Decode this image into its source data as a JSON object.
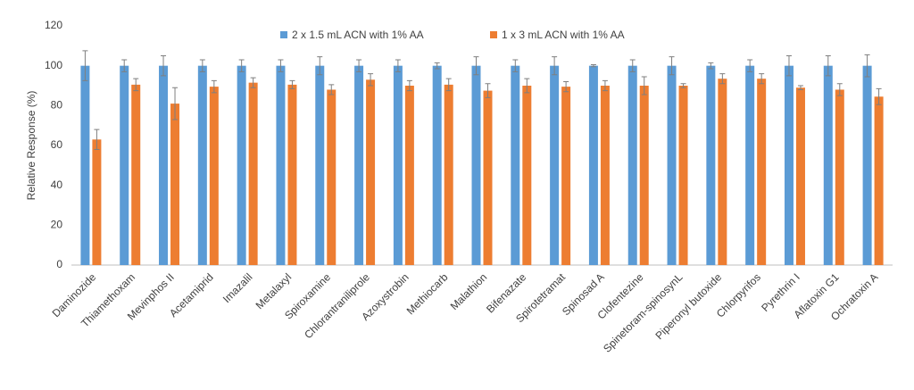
{
  "chart_data": {
    "type": "bar",
    "y_label": "Relative Response (%)",
    "categories": [
      "Daminozide",
      "Thiamethoxam",
      "Mevinphos II",
      "Acetamiprid",
      "Imazalil",
      "Metalaxyl",
      "Spiroxamine",
      "Chlorantraniliprole",
      "Azoxystrobin",
      "Methiocarb",
      "Malathion",
      "Bifenazate",
      "Spirotetramat",
      "Spinosad A",
      "Clofentezine",
      "Spinetoram-spinosynL",
      "Piperonyl butoxide",
      "Chlorpyrifos",
      "Pyrethrin I",
      "Aflatoxin G1",
      "Ochratoxin A"
    ],
    "series": [
      {
        "name": "2 x 1.5 mL ACN with 1% AA",
        "color": "#5b9bd5",
        "values": [
          100,
          100,
          100,
          100,
          100,
          100,
          100,
          100,
          100,
          100,
          100,
          100,
          100,
          100,
          100,
          100,
          100,
          100,
          100,
          100,
          100
        ],
        "errors": [
          7.5,
          3,
          5,
          3,
          3,
          3,
          4.5,
          3,
          3,
          1.5,
          4.5,
          3,
          4.5,
          0.5,
          3,
          4.5,
          1.5,
          3,
          5,
          5,
          5.5
        ]
      },
      {
        "name": "1 x 3 mL ACN with 1% AA",
        "color": "#ed7d31",
        "values": [
          63,
          90.5,
          81,
          89.5,
          91.5,
          90.5,
          88,
          93,
          90,
          90.5,
          87.5,
          90,
          89.5,
          90,
          90,
          90,
          93.5,
          93.5,
          89,
          88,
          84.5
        ],
        "errors": [
          5,
          3,
          8,
          3,
          2.5,
          2,
          2.5,
          3,
          2.5,
          3,
          3.5,
          3.5,
          2.5,
          2.5,
          4.5,
          1,
          2.5,
          2.5,
          1,
          3,
          4
        ]
      }
    ],
    "ylim": [
      0,
      120
    ],
    "yticks": [
      0,
      20,
      40,
      60,
      80,
      100,
      120
    ],
    "grid": false,
    "legend": "top"
  }
}
